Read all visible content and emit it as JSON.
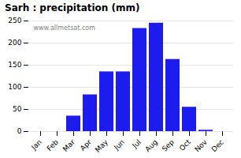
{
  "chart_data": {
    "type": "bar",
    "title": "Sarh : precipitation (mm)",
    "categories": [
      "Jan",
      "Feb",
      "Mar",
      "Apr",
      "May",
      "Jun",
      "Jul",
      "Aug",
      "Sep",
      "Oct",
      "Nov",
      "Dec"
    ],
    "values": [
      0,
      0,
      35,
      83,
      135,
      135,
      233,
      245,
      163,
      55,
      3,
      0
    ],
    "color": "#1c1cee",
    "ylim": [
      0,
      250
    ],
    "yticks": [
      0,
      50,
      100,
      150,
      200,
      250
    ],
    "grid": true,
    "annotation": "www.allmetsat.com"
  }
}
